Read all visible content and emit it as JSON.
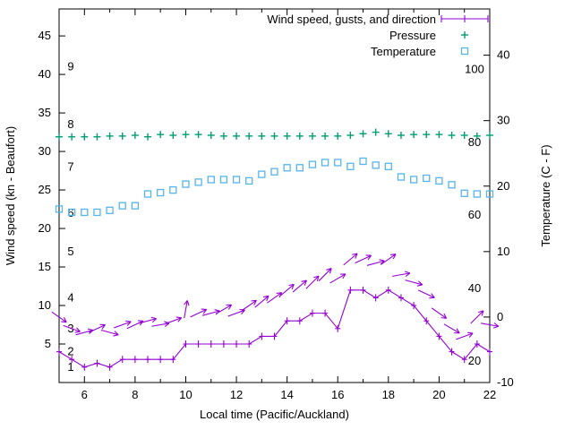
{
  "chart_data": {
    "type": "line",
    "title": "",
    "xlabel": "Local time (Pacific/Auckland)",
    "ylabel": "Wind speed (kn - Beaufort)",
    "y2label": "Temperature (C - F)",
    "x_range": [
      5,
      22
    ],
    "x_major_ticks": [
      6,
      8,
      10,
      12,
      14,
      16,
      18,
      20,
      22
    ],
    "x_minor_ticks": [
      7,
      9,
      11,
      13,
      15,
      17,
      19,
      21
    ],
    "y_left_range": [
      0,
      48.5
    ],
    "y_left_ticks": [
      5,
      10,
      15,
      20,
      25,
      30,
      35,
      40,
      45
    ],
    "y_right_range": [
      -10,
      47
    ],
    "y_right_ticks": [
      -10,
      0,
      10,
      20,
      30,
      40
    ],
    "beaufort_labels": [
      {
        "text": "1",
        "kn": 2
      },
      {
        "text": "2",
        "kn": 4
      },
      {
        "text": "3",
        "kn": 7
      },
      {
        "text": "4",
        "kn": 11
      },
      {
        "text": "5",
        "kn": 17
      },
      {
        "text": "6",
        "kn": 22
      },
      {
        "text": "7",
        "kn": 28
      },
      {
        "text": "8",
        "kn": 33.5
      },
      {
        "text": "9",
        "kn": 41
      }
    ],
    "fahrenheit_labels": [
      {
        "text": "20",
        "c": -6.7
      },
      {
        "text": "40",
        "c": 4.4
      },
      {
        "text": "60",
        "c": 15.6
      },
      {
        "text": "80",
        "c": 26.7
      },
      {
        "text": "100",
        "c": 37.8
      }
    ],
    "legend_position": "top-right-inside",
    "legend": [
      {
        "label": "Wind speed, gusts, and direction",
        "color": "#9400D3",
        "symbol": "line-plus"
      },
      {
        "label": "Pressure",
        "color": "#009E73",
        "symbol": "plus"
      },
      {
        "label": "Temperature",
        "color": "#56B4E9",
        "symbol": "open-square"
      }
    ],
    "x": [
      5,
      5.5,
      6,
      6.5,
      7,
      7.5,
      8,
      8.5,
      9,
      9.5,
      10,
      10.5,
      11,
      11.5,
      12,
      12.5,
      13,
      13.5,
      14,
      14.5,
      15,
      15.5,
      16,
      16.5,
      17,
      17.5,
      18,
      18.5,
      19,
      19.5,
      20,
      20.5,
      21,
      21.5,
      22
    ],
    "series": {
      "wind_speed_kn": [
        4,
        3,
        2,
        2.5,
        2,
        3,
        3,
        3,
        3,
        3,
        5,
        5,
        5,
        5,
        5,
        5,
        6,
        6,
        8,
        8,
        9,
        9,
        7,
        12,
        12,
        11,
        12,
        11,
        10,
        8,
        6,
        4,
        3,
        5,
        4
      ],
      "gusts_kn": [
        8.5,
        7,
        6.5,
        7,
        6.5,
        7.5,
        7.5,
        8,
        7.5,
        8,
        9.5,
        9,
        9,
        9.5,
        9,
        10,
        10.5,
        11,
        12,
        12.5,
        13,
        14,
        13.5,
        16,
        16,
        15.5,
        16,
        14,
        13,
        11.5,
        9,
        7,
        6,
        8.5,
        7.5
      ],
      "gust_direction_deg": [
        -35,
        -20,
        15,
        25,
        -15,
        20,
        25,
        15,
        10,
        20,
        80,
        25,
        15,
        30,
        20,
        35,
        40,
        35,
        40,
        40,
        45,
        45,
        30,
        40,
        25,
        15,
        35,
        10,
        -15,
        -25,
        -35,
        -30,
        20,
        45,
        -10
      ],
      "pressure_plotted_left_axis": [
        31.9,
        31.9,
        31.9,
        31.9,
        32,
        32,
        32.1,
        31.9,
        32.2,
        32.1,
        32.2,
        32.2,
        32.1,
        32,
        32,
        32,
        32,
        32,
        32,
        32,
        32,
        32,
        32,
        32.1,
        32.3,
        32.5,
        32.3,
        32.1,
        32.2,
        32.2,
        32.2,
        32.1,
        32.1,
        32,
        32.1
      ],
      "temperature_c": [
        16.5,
        16,
        16,
        16,
        16.3,
        17,
        17,
        18.8,
        19,
        19.4,
        20.3,
        20.6,
        21,
        21,
        21,
        20.8,
        21.8,
        22.2,
        22.8,
        22.8,
        23.3,
        23.6,
        23.6,
        23,
        23.8,
        23.2,
        23,
        21.4,
        21,
        21.2,
        20.8,
        20.2,
        18.9,
        18.8,
        18.8
      ]
    },
    "colors": {
      "wind": "#9400D3",
      "pressure": "#009E73",
      "temperature": "#56B4E9",
      "axis": "#000000",
      "background": "#FFFFFF"
    }
  }
}
